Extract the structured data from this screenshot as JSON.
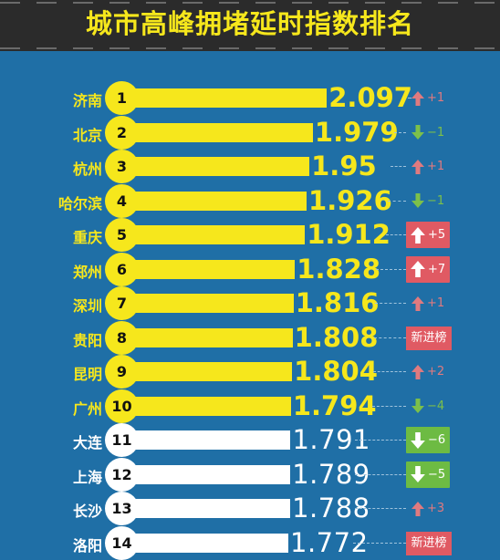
{
  "title": "城市高峰拥堵延时指数排名",
  "colors": {
    "background": "#1f6fa6",
    "header": "#2b2b2b",
    "yellow": "#f6e71c",
    "white": "#ffffff",
    "up": "#e07a7f",
    "down": "#7cc04a",
    "box_up": "#e05a63",
    "box_down": "#6dbb43"
  },
  "chart_data": {
    "type": "bar",
    "orientation": "horizontal",
    "title": "城市高峰拥堵延时指数排名",
    "categories": [
      "济南",
      "北京",
      "杭州",
      "哈尔滨",
      "重庆",
      "郑州",
      "深圳",
      "贵阳",
      "昆明",
      "广州",
      "大连",
      "上海",
      "长沙",
      "洛阳"
    ],
    "ranks": [
      1,
      2,
      3,
      4,
      5,
      6,
      7,
      8,
      9,
      10,
      11,
      12,
      13,
      14
    ],
    "values": [
      2.097,
      1.979,
      1.95,
      1.926,
      1.912,
      1.828,
      1.816,
      1.808,
      1.804,
      1.794,
      1.791,
      1.789,
      1.788,
      1.772
    ],
    "labels": [
      "2.097",
      "1.979",
      "1.95",
      "1.926",
      "1.912",
      "1.828",
      "1.816",
      "1.808",
      "1.804",
      "1.794",
      "1.791",
      "1.789",
      "1.788",
      "1.772"
    ],
    "rank_change": [
      "+1",
      "−1",
      "+1",
      "−1",
      "+5",
      "+7",
      "+1",
      "新进榜",
      "+2",
      "−4",
      "−6",
      "−5",
      "+3",
      "新进榜"
    ],
    "change_direction": [
      "up",
      "down",
      "up",
      "down",
      "up",
      "up",
      "up",
      "new",
      "up",
      "down",
      "down",
      "down",
      "up",
      "new"
    ],
    "change_boxed": [
      false,
      false,
      false,
      false,
      true,
      true,
      false,
      true,
      false,
      false,
      true,
      true,
      false,
      true
    ],
    "highlight_top": 10
  }
}
